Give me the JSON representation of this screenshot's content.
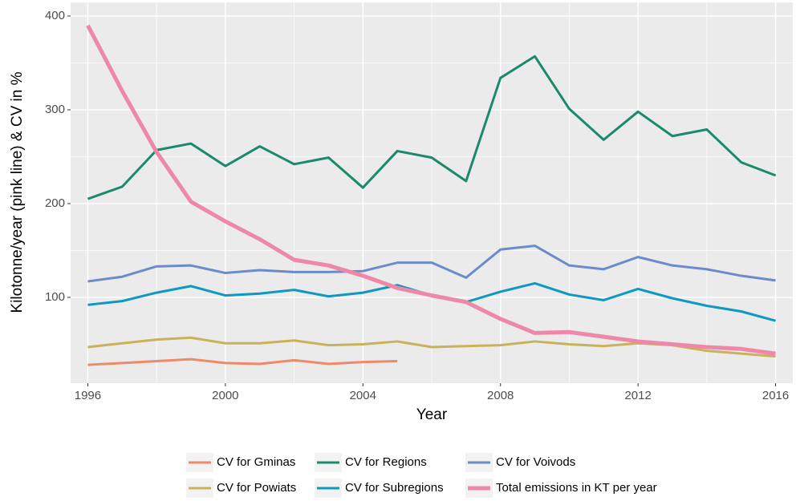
{
  "chart_data": {
    "type": "line",
    "x_label": "Year",
    "y_label": "Kilotonne/year (pink line) & CV in %",
    "x": [
      1996,
      1997,
      1998,
      1999,
      2000,
      2001,
      2002,
      2003,
      2004,
      2005,
      2006,
      2007,
      2008,
      2009,
      2010,
      2011,
      2012,
      2013,
      2014,
      2015,
      2016
    ],
    "series": [
      {
        "name": "CV for Gminas",
        "color": "#EE8A6A",
        "values": [
          28,
          30,
          32,
          34,
          30,
          29,
          33,
          29,
          31,
          32,
          null,
          null,
          null,
          null,
          null,
          null,
          null,
          null,
          null,
          null,
          null
        ]
      },
      {
        "name": "CV for Powiats",
        "color": "#C9B25A",
        "values": [
          47,
          51,
          55,
          57,
          51,
          51,
          54,
          49,
          50,
          53,
          47,
          48,
          49,
          53,
          50,
          48,
          51,
          49,
          43,
          40,
          37
        ]
      },
      {
        "name": "CV for Regions",
        "color": "#1A8A6C",
        "values": [
          205,
          218,
          257,
          264,
          240,
          261,
          242,
          249,
          217,
          256,
          249,
          224,
          334,
          357,
          301,
          268,
          298,
          272,
          279,
          244,
          230
        ]
      },
      {
        "name": "CV for Subregions",
        "color": "#0E98C2",
        "values": [
          92,
          96,
          105,
          112,
          102,
          104,
          108,
          101,
          105,
          113,
          102,
          95,
          106,
          115,
          103,
          97,
          109,
          99,
          91,
          85,
          75
        ]
      },
      {
        "name": "CV for Voivods",
        "color": "#6A8CCA",
        "values": [
          117,
          122,
          133,
          134,
          126,
          129,
          127,
          127,
          128,
          137,
          137,
          121,
          151,
          155,
          134,
          130,
          143,
          134,
          130,
          123,
          118
        ]
      },
      {
        "name": "Total emissions in KT per year",
        "color": "#EE88A8",
        "values": [
          390,
          320,
          255,
          202,
          181,
          162,
          140,
          134,
          123,
          110,
          102,
          95,
          77,
          62,
          63,
          58,
          53,
          50,
          47,
          45,
          40
        ]
      }
    ],
    "xlim": [
      1995.5,
      2016.5
    ],
    "xticks": [
      1996,
      2000,
      2004,
      2008,
      2012,
      2016
    ],
    "ylim": [
      8.5,
      414.5
    ],
    "yticks": [
      100,
      200,
      300,
      400
    ],
    "grid": true
  }
}
